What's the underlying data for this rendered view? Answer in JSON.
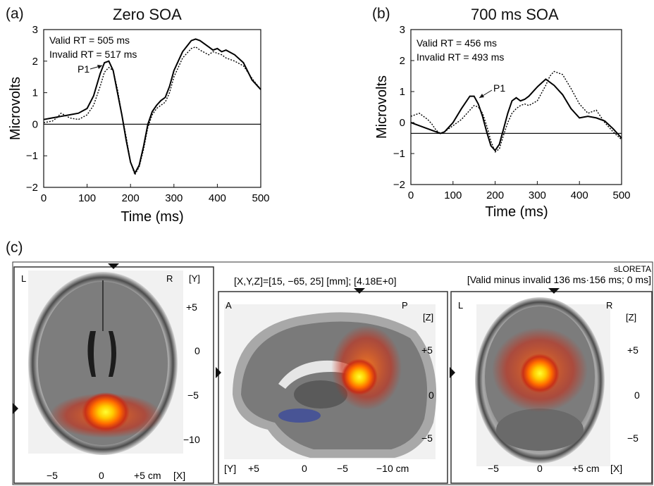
{
  "panels": [
    {
      "label": "(a)",
      "title": "Zero SOA",
      "ylabel": "Microvolts",
      "xlabel": "Time (ms)",
      "annotations": [
        "Valid RT = 505 ms",
        "Invalid RT = 517 ms"
      ],
      "peak_label": "P1"
    },
    {
      "label": "(b)",
      "title": "700 ms SOA",
      "ylabel": "Microvolts",
      "xlabel": "Time (ms)",
      "annotations": [
        "Valid RT = 456 ms",
        "Invalid RT = 493 ms"
      ],
      "peak_label": "P1"
    }
  ],
  "panel_c": {
    "label": "(c)",
    "coord_readout": "[X,Y,Z]=[15, −65, 25] [mm]; [4.18E+0]",
    "method": "sLORETA",
    "contrast": "[Valid minus invalid 136 ms·156 ms; 0 ms]",
    "axial": {
      "corner_left": "L",
      "corner_right": "R",
      "axis_label": "[Y]",
      "y_ticks": [
        "+5",
        "0",
        "−5",
        "−10"
      ],
      "x_ticks": [
        "−5",
        "0",
        "+5 cm"
      ],
      "x_axis_label": "[X]"
    },
    "sagittal": {
      "corner_left": "A",
      "corner_right": "P",
      "axis_label": "[Z]",
      "y_ticks": [
        "+5",
        "0",
        "−5"
      ],
      "x_axis_label": "[Y]",
      "x_ticks": [
        "+5",
        "0",
        "−5",
        "−10 cm"
      ]
    },
    "coronal": {
      "corner_left": "L",
      "corner_right": "R",
      "axis_label": "[Z]",
      "y_ticks": [
        "+5",
        "0",
        "−5"
      ],
      "x_ticks": [
        "−5",
        "0",
        "+5 cm"
      ],
      "x_axis_label": "[X]"
    }
  },
  "chart_data": [
    {
      "type": "line",
      "title": "Zero SOA",
      "xlabel": "Time (ms)",
      "ylabel": "Microvolts",
      "xlim": [
        0,
        500
      ],
      "ylim": [
        -2,
        3
      ],
      "xticks": [
        0,
        100,
        200,
        300,
        400,
        500
      ],
      "yticks": [
        -2,
        -1,
        0,
        1,
        2,
        3
      ],
      "baseline": 0,
      "series": [
        {
          "style": "solid",
          "x": [
            0,
            20,
            40,
            60,
            80,
            100,
            115,
            130,
            140,
            150,
            160,
            170,
            180,
            190,
            200,
            210,
            220,
            230,
            240,
            250,
            260,
            270,
            280,
            290,
            300,
            320,
            340,
            350,
            360,
            380,
            390,
            400,
            410,
            420,
            440,
            460,
            480,
            500
          ],
          "y": [
            0.15,
            0.2,
            0.25,
            0.3,
            0.35,
            0.5,
            0.9,
            1.6,
            1.95,
            2.0,
            1.7,
            1.0,
            0.3,
            -0.5,
            -1.2,
            -1.55,
            -1.3,
            -0.7,
            0.0,
            0.4,
            0.6,
            0.75,
            0.85,
            1.2,
            1.7,
            2.3,
            2.65,
            2.7,
            2.65,
            2.45,
            2.35,
            2.4,
            2.3,
            2.35,
            2.2,
            1.95,
            1.4,
            1.1
          ]
        },
        {
          "style": "dotted",
          "x": [
            0,
            20,
            30,
            40,
            60,
            80,
            100,
            115,
            130,
            140,
            150,
            160,
            170,
            180,
            190,
            200,
            210,
            220,
            230,
            240,
            250,
            260,
            270,
            280,
            290,
            300,
            320,
            340,
            350,
            360,
            380,
            390,
            400,
            410,
            420,
            440,
            460,
            480,
            500
          ],
          "y": [
            0.05,
            0.1,
            0.2,
            0.35,
            0.2,
            0.15,
            0.3,
            0.6,
            1.2,
            1.65,
            1.8,
            1.7,
            1.1,
            0.3,
            -0.4,
            -1.2,
            -1.6,
            -1.35,
            -0.8,
            -0.1,
            0.3,
            0.5,
            0.6,
            0.7,
            1.0,
            1.5,
            2.1,
            2.4,
            2.45,
            2.35,
            2.2,
            2.3,
            2.25,
            2.2,
            2.1,
            2.0,
            1.85,
            1.45,
            1.1
          ]
        }
      ]
    },
    {
      "type": "line",
      "title": "700 ms SOA",
      "xlabel": "Time (ms)",
      "ylabel": "Microvolts",
      "xlim": [
        0,
        500
      ],
      "ylim": [
        -2,
        3
      ],
      "xticks": [
        0,
        100,
        200,
        300,
        400,
        500
      ],
      "yticks": [
        -2,
        -1,
        0,
        1,
        2,
        3
      ],
      "baseline": -0.35,
      "series": [
        {
          "style": "solid",
          "x": [
            0,
            20,
            40,
            60,
            70,
            80,
            100,
            120,
            140,
            150,
            160,
            170,
            180,
            190,
            200,
            210,
            220,
            230,
            240,
            250,
            260,
            270,
            280,
            300,
            320,
            340,
            360,
            380,
            400,
            420,
            440,
            460,
            480,
            500
          ],
          "y": [
            0.0,
            -0.1,
            -0.2,
            -0.3,
            -0.35,
            -0.3,
            0.0,
            0.45,
            0.85,
            0.85,
            0.6,
            0.2,
            -0.3,
            -0.75,
            -0.9,
            -0.7,
            -0.2,
            0.3,
            0.7,
            0.8,
            0.7,
            0.75,
            0.85,
            1.15,
            1.4,
            1.2,
            0.9,
            0.45,
            0.15,
            0.2,
            0.15,
            0.05,
            -0.2,
            -0.5
          ]
        },
        {
          "style": "dotted",
          "x": [
            0,
            10,
            20,
            30,
            40,
            50,
            60,
            70,
            80,
            100,
            120,
            140,
            150,
            160,
            170,
            180,
            190,
            200,
            210,
            220,
            230,
            240,
            250,
            260,
            270,
            280,
            300,
            320,
            330,
            340,
            360,
            380,
            400,
            420,
            440,
            460,
            480,
            500
          ],
          "y": [
            0.2,
            0.25,
            0.3,
            0.2,
            0.1,
            -0.05,
            -0.25,
            -0.35,
            -0.3,
            -0.1,
            0.1,
            0.4,
            0.55,
            0.5,
            0.3,
            -0.1,
            -0.6,
            -0.95,
            -0.85,
            -0.4,
            0.0,
            0.3,
            0.45,
            0.55,
            0.6,
            0.55,
            0.7,
            1.2,
            1.5,
            1.65,
            1.55,
            1.1,
            0.6,
            0.3,
            0.4,
            0.0,
            -0.3,
            -0.55
          ]
        }
      ]
    }
  ]
}
